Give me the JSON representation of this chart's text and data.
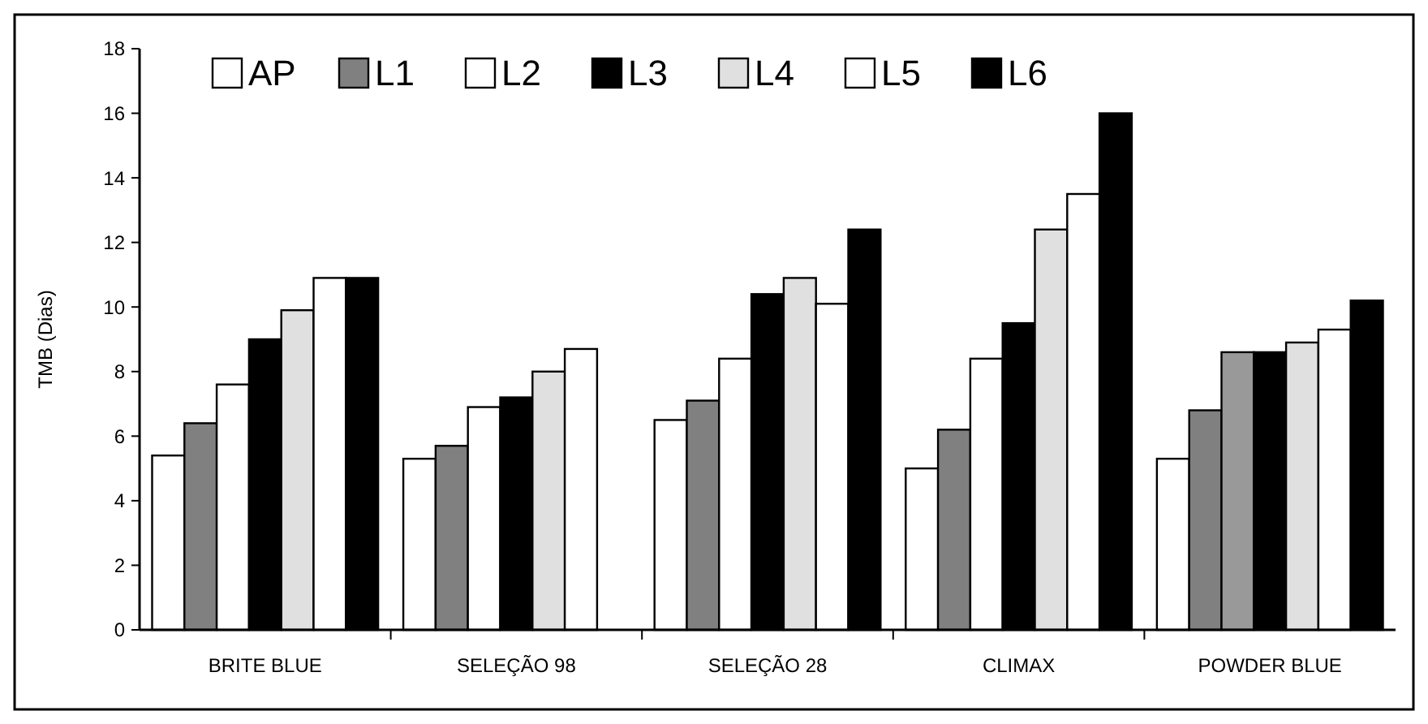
{
  "chart_data": {
    "type": "bar",
    "ylabel": "TMB (Dias)",
    "categories": [
      "BRITE BLUE",
      "SELEÇÃO 98",
      "SELEÇÃO 28",
      "CLIMAX",
      "POWDER BLUE"
    ],
    "series": [
      {
        "name": "AP",
        "color": "#ffffff",
        "values": [
          5.4,
          5.3,
          6.5,
          5.0,
          5.3
        ]
      },
      {
        "name": "L1",
        "color": "#808080",
        "values": [
          6.4,
          5.7,
          7.1,
          6.2,
          6.8
        ]
      },
      {
        "name": "L2",
        "color": "#ffffff",
        "colors": [
          "#ffffff",
          "#ffffff",
          "#ffffff",
          "#ffffff",
          "#999999"
        ],
        "values": [
          7.6,
          6.9,
          8.4,
          8.4,
          8.6
        ]
      },
      {
        "name": "L3",
        "color": "#000000",
        "values": [
          9.0,
          7.2,
          10.4,
          9.5,
          8.6
        ]
      },
      {
        "name": "L4",
        "color": "#e0e0e0",
        "values": [
          9.9,
          8.0,
          10.9,
          12.4,
          8.9
        ]
      },
      {
        "name": "L5",
        "color": "#ffffff",
        "values": [
          10.9,
          8.7,
          10.1,
          13.5,
          9.3
        ]
      },
      {
        "name": "L6",
        "color": "#000000",
        "values": [
          10.9,
          null,
          12.4,
          16.0,
          10.2
        ]
      }
    ],
    "ylim": [
      0,
      18
    ],
    "yticks": [
      0,
      2,
      4,
      6,
      8,
      10,
      12,
      14,
      16,
      18
    ],
    "grid": false,
    "legend": "top"
  }
}
